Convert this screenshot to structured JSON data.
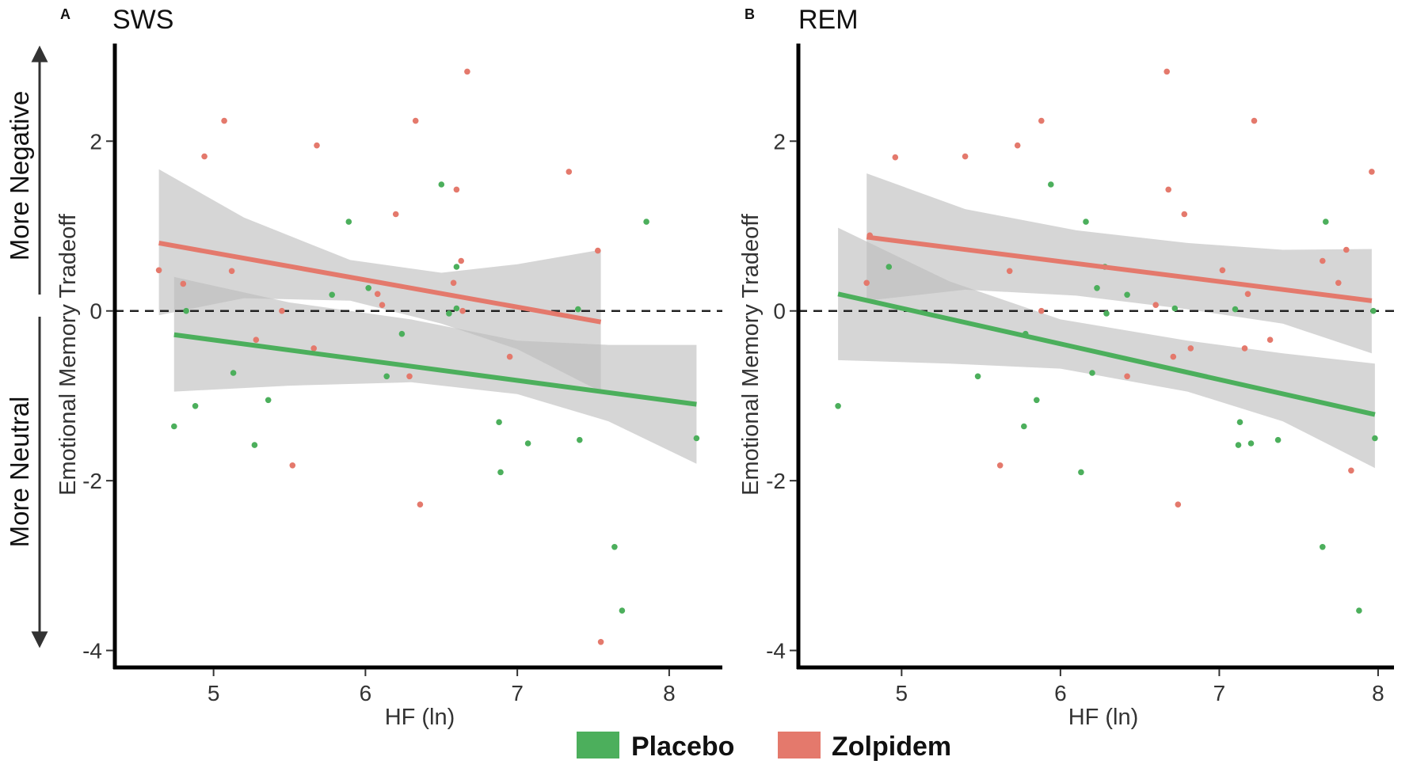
{
  "colors": {
    "placebo": "#4CAF5C",
    "zolpidem": "#E4796C",
    "band": "#BDBDBD",
    "axis": "#000000",
    "text": "#333333"
  },
  "side_labels": {
    "top": "More Negative",
    "bottom": "More Neutral"
  },
  "legend": [
    {
      "name": "Placebo",
      "color": "#4CAF5C"
    },
    {
      "name": "Zolpidem",
      "color": "#E4796C"
    }
  ],
  "chart_data": [
    {
      "type": "scatter",
      "letter": "A",
      "title": "SWS",
      "xlabel": "HF (ln)",
      "ylabel": "Emotional Memory Tradeoff",
      "xlim": [
        4.35,
        8.35
      ],
      "ylim": [
        -4.2,
        3.15
      ],
      "xticks": [
        5,
        6,
        7,
        8
      ],
      "yticks": [
        2,
        0,
        -2,
        -4
      ],
      "reference_line": 0,
      "series": [
        {
          "name": "Placebo",
          "color": "#4CAF5C",
          "points": [
            [
              4.74,
              -1.36
            ],
            [
              4.82,
              0.0
            ],
            [
              4.88,
              -1.12
            ],
            [
              5.13,
              -0.73
            ],
            [
              5.27,
              -1.58
            ],
            [
              5.36,
              -1.05
            ],
            [
              5.78,
              0.19
            ],
            [
              5.89,
              1.05
            ],
            [
              6.02,
              0.27
            ],
            [
              6.14,
              -0.77
            ],
            [
              6.24,
              -0.27
            ],
            [
              6.5,
              1.49
            ],
            [
              6.55,
              -0.03
            ],
            [
              6.6,
              0.03
            ],
            [
              6.6,
              0.52
            ],
            [
              6.88,
              -1.31
            ],
            [
              6.89,
              -1.9
            ],
            [
              7.07,
              -1.56
            ],
            [
              7.4,
              0.02
            ],
            [
              7.41,
              -1.52
            ],
            [
              7.64,
              -2.78
            ],
            [
              7.69,
              -3.53
            ],
            [
              7.85,
              1.05
            ],
            [
              8.18,
              -1.5
            ]
          ],
          "fit": {
            "x": [
              4.74,
              8.18
            ],
            "y": [
              -0.28,
              -1.1
            ]
          },
          "ci": {
            "x": [
              4.74,
              5.5,
              6.3,
              7.0,
              7.6,
              8.18
            ],
            "lower": [
              -0.95,
              -0.88,
              -0.84,
              -0.98,
              -1.3,
              -1.8
            ],
            "upper": [
              0.4,
              0.1,
              -0.1,
              -0.35,
              -0.4,
              -0.4
            ]
          }
        },
        {
          "name": "Zolpidem",
          "color": "#E4796C",
          "points": [
            [
              4.64,
              0.48
            ],
            [
              4.8,
              0.32
            ],
            [
              4.94,
              1.82
            ],
            [
              5.07,
              2.24
            ],
            [
              5.12,
              0.47
            ],
            [
              5.28,
              -0.34
            ],
            [
              5.45,
              0.0
            ],
            [
              5.52,
              -1.82
            ],
            [
              5.66,
              -0.44
            ],
            [
              5.68,
              1.95
            ],
            [
              6.2,
              1.14
            ],
            [
              6.08,
              0.2
            ],
            [
              6.11,
              0.07
            ],
            [
              6.29,
              -0.77
            ],
            [
              6.33,
              2.24
            ],
            [
              6.36,
              -2.28
            ],
            [
              6.58,
              0.33
            ],
            [
              6.6,
              1.43
            ],
            [
              6.63,
              0.59
            ],
            [
              6.64,
              0.0
            ],
            [
              6.67,
              2.82
            ],
            [
              6.95,
              -0.54
            ],
            [
              7.34,
              1.64
            ],
            [
              7.53,
              0.71
            ],
            [
              7.55,
              -3.9
            ]
          ],
          "fit": {
            "x": [
              4.64,
              7.55
            ],
            "y": [
              0.8,
              -0.13
            ]
          },
          "ci": {
            "x": [
              4.64,
              5.2,
              5.9,
              6.5,
              7.0,
              7.55
            ],
            "lower": [
              -0.05,
              0.15,
              0.12,
              -0.15,
              -0.45,
              -0.95
            ],
            "upper": [
              1.67,
              1.1,
              0.6,
              0.45,
              0.55,
              0.72
            ]
          }
        }
      ]
    },
    {
      "type": "scatter",
      "letter": "B",
      "title": "REM",
      "xlabel": "HF (ln)",
      "ylabel": "Emotional Memory Tradeoff",
      "xlim": [
        4.35,
        8.1
      ],
      "ylim": [
        -4.2,
        3.15
      ],
      "xticks": [
        5,
        6,
        7,
        8
      ],
      "yticks": [
        2,
        0,
        -2,
        -4
      ],
      "reference_line": 0,
      "series": [
        {
          "name": "Placebo",
          "color": "#4CAF5C",
          "points": [
            [
              4.6,
              -1.12
            ],
            [
              4.92,
              0.52
            ],
            [
              5.48,
              -0.77
            ],
            [
              5.77,
              -1.36
            ],
            [
              5.78,
              -0.27
            ],
            [
              5.85,
              -1.05
            ],
            [
              5.94,
              1.49
            ],
            [
              6.13,
              -1.9
            ],
            [
              6.16,
              1.05
            ],
            [
              6.2,
              -0.73
            ],
            [
              6.23,
              0.27
            ],
            [
              6.28,
              0.52
            ],
            [
              6.29,
              -0.03
            ],
            [
              6.42,
              0.19
            ],
            [
              6.72,
              0.03
            ],
            [
              7.1,
              0.02
            ],
            [
              7.12,
              -1.58
            ],
            [
              7.13,
              -1.31
            ],
            [
              7.2,
              -1.56
            ],
            [
              7.37,
              -1.52
            ],
            [
              7.65,
              -2.78
            ],
            [
              7.67,
              1.05
            ],
            [
              7.88,
              -3.53
            ],
            [
              7.97,
              0.0
            ],
            [
              7.98,
              -1.5
            ]
          ],
          "fit": {
            "x": [
              4.6,
              7.98
            ],
            "y": [
              0.2,
              -1.22
            ]
          },
          "ci": {
            "x": [
              4.6,
              5.3,
              6.0,
              6.8,
              7.4,
              7.98
            ],
            "lower": [
              -0.58,
              -0.62,
              -0.68,
              -0.95,
              -1.3,
              -1.85
            ],
            "upper": [
              0.98,
              0.35,
              -0.1,
              -0.35,
              -0.5,
              -0.62
            ]
          }
        },
        {
          "name": "Zolpidem",
          "color": "#E4796C",
          "points": [
            [
              4.78,
              0.33
            ],
            [
              4.8,
              0.89
            ],
            [
              4.96,
              1.81
            ],
            [
              5.4,
              1.82
            ],
            [
              5.62,
              -1.82
            ],
            [
              5.68,
              0.47
            ],
            [
              5.73,
              1.95
            ],
            [
              5.88,
              0.0
            ],
            [
              5.88,
              2.24
            ],
            [
              6.42,
              -0.77
            ],
            [
              6.6,
              0.07
            ],
            [
              6.67,
              2.82
            ],
            [
              6.68,
              1.43
            ],
            [
              6.71,
              -0.54
            ],
            [
              6.74,
              -2.28
            ],
            [
              6.78,
              1.14
            ],
            [
              6.82,
              -0.44
            ],
            [
              7.02,
              0.48
            ],
            [
              7.16,
              -0.44
            ],
            [
              7.18,
              0.2
            ],
            [
              7.22,
              2.24
            ],
            [
              7.32,
              -0.34
            ],
            [
              7.65,
              0.59
            ],
            [
              7.75,
              0.33
            ],
            [
              7.8,
              0.72
            ],
            [
              7.83,
              -1.88
            ],
            [
              7.96,
              1.64
            ]
          ],
          "fit": {
            "x": [
              4.78,
              7.96
            ],
            "y": [
              0.87,
              0.12
            ]
          },
          "ci": {
            "x": [
              4.78,
              5.4,
              6.1,
              6.8,
              7.4,
              7.96
            ],
            "lower": [
              0.12,
              0.25,
              0.18,
              0.02,
              -0.15,
              -0.5
            ],
            "upper": [
              1.62,
              1.2,
              0.95,
              0.8,
              0.72,
              0.73
            ]
          }
        }
      ]
    }
  ]
}
